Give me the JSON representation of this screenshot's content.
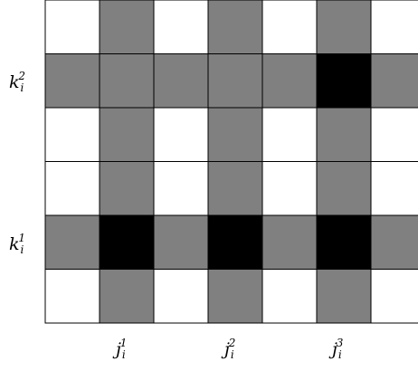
{
  "diagram": {
    "rows": 6,
    "cols": 7,
    "colors": {
      "empty": "#ffffff",
      "gray": "#808080",
      "black": "#000000",
      "border": "#000000"
    },
    "cells": [
      [
        "empty",
        "gray",
        "empty",
        "gray",
        "empty",
        "gray",
        "empty"
      ],
      [
        "gray",
        "gray",
        "gray",
        "gray",
        "gray",
        "black",
        "gray"
      ],
      [
        "empty",
        "gray",
        "empty",
        "gray",
        "empty",
        "gray",
        "empty"
      ],
      [
        "empty",
        "gray",
        "empty",
        "gray",
        "empty",
        "gray",
        "empty"
      ],
      [
        "gray",
        "black",
        "gray",
        "black",
        "gray",
        "black",
        "gray"
      ],
      [
        "empty",
        "gray",
        "empty",
        "gray",
        "empty",
        "gray",
        "empty"
      ]
    ],
    "row_labels": [
      {
        "var": "k",
        "sub": "i",
        "sup": "2"
      },
      {
        "var": "k",
        "sub": "i",
        "sup": "1"
      }
    ],
    "col_labels": [
      {
        "var": "j",
        "sub": "i",
        "sup": "1"
      },
      {
        "var": "j",
        "sub": "i",
        "sup": "2"
      },
      {
        "var": "j",
        "sub": "i",
        "sup": "3"
      }
    ]
  }
}
